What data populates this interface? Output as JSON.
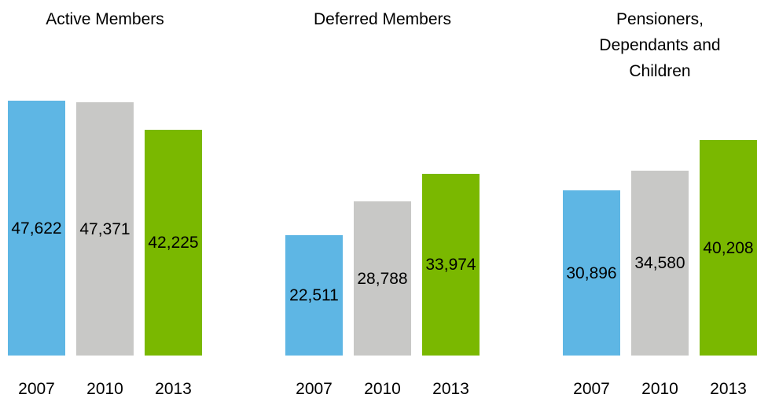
{
  "chart_data": [
    {
      "type": "bar",
      "title": "Active Members",
      "categories": [
        "2007",
        "2010",
        "2013"
      ],
      "values": [
        47622,
        47371,
        42225
      ],
      "value_labels": [
        "47,622",
        "47,371",
        "42,225"
      ],
      "colors": [
        "#5eb6e4",
        "#c8c8c6",
        "#7ab800"
      ]
    },
    {
      "type": "bar",
      "title": "Deferred Members",
      "categories": [
        "2007",
        "2010",
        "2013"
      ],
      "values": [
        22511,
        28788,
        33974
      ],
      "value_labels": [
        "22,511",
        "28,788",
        "33,974"
      ],
      "colors": [
        "#5eb6e4",
        "#c8c8c6",
        "#7ab800"
      ]
    },
    {
      "type": "bar",
      "title": "Pensioners,\nDependants and\nChildren",
      "categories": [
        "2007",
        "2010",
        "2013"
      ],
      "values": [
        30896,
        34580,
        40208
      ],
      "value_labels": [
        "30,896",
        "34,580",
        "40,208"
      ],
      "colors": [
        "#5eb6e4",
        "#c8c8c6",
        "#7ab800"
      ]
    }
  ]
}
